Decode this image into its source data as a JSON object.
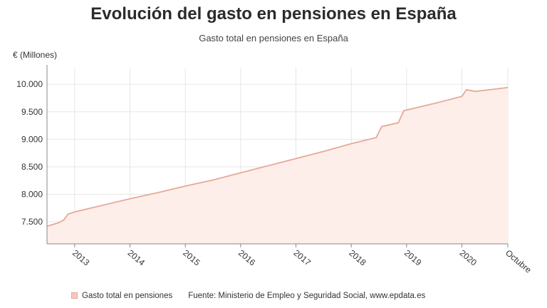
{
  "header": {
    "title": "Evolución del gasto en pensiones en España",
    "subtitle": "Gasto total en pensiones en España"
  },
  "footer": {
    "legend_label": "Gasto total en pensiones",
    "source": "Fuente: Ministerio de Empleo y Seguridad Social, www.epdata.es"
  },
  "colors": {
    "line": "#e8a898",
    "fill": "#fdeee9",
    "grid": "#e6e6e6",
    "axis": "#888888"
  },
  "chart_data": {
    "type": "area",
    "title": "Gasto total en pensiones en España",
    "ylabel": "€ (Millones)",
    "xlabel": "",
    "ylim": [
      7100,
      10300
    ],
    "xlim": [
      2012.5,
      2020.83
    ],
    "yticks": [
      {
        "value": 7500,
        "label": "7.500"
      },
      {
        "value": 8000,
        "label": "8.000"
      },
      {
        "value": 8500,
        "label": "8.500"
      },
      {
        "value": 9000,
        "label": "9.000"
      },
      {
        "value": 9500,
        "label": "9.500"
      },
      {
        "value": 10000,
        "label": "10.000"
      }
    ],
    "xticks": [
      {
        "value": 2013,
        "label": "2013"
      },
      {
        "value": 2014,
        "label": "2014"
      },
      {
        "value": 2015,
        "label": "2015"
      },
      {
        "value": 2016,
        "label": "2016"
      },
      {
        "value": 2017,
        "label": "2017"
      },
      {
        "value": 2018,
        "label": "2018"
      },
      {
        "value": 2019,
        "label": "2019"
      },
      {
        "value": 2020,
        "label": "2020"
      },
      {
        "value": 2020.83,
        "label": "Octubre"
      }
    ],
    "grid": true,
    "series": [
      {
        "name": "Gasto total en pensiones",
        "points": [
          [
            2012.5,
            7420
          ],
          [
            2012.7,
            7480
          ],
          [
            2012.8,
            7530
          ],
          [
            2012.88,
            7640
          ],
          [
            2013.0,
            7680
          ],
          [
            2013.5,
            7800
          ],
          [
            2014.0,
            7920
          ],
          [
            2014.5,
            8030
          ],
          [
            2015.0,
            8150
          ],
          [
            2015.5,
            8260
          ],
          [
            2016.0,
            8390
          ],
          [
            2016.5,
            8520
          ],
          [
            2017.0,
            8650
          ],
          [
            2017.5,
            8780
          ],
          [
            2018.0,
            8920
          ],
          [
            2018.45,
            9030
          ],
          [
            2018.55,
            9230
          ],
          [
            2018.85,
            9300
          ],
          [
            2018.95,
            9520
          ],
          [
            2019.5,
            9650
          ],
          [
            2020.0,
            9780
          ],
          [
            2020.08,
            9900
          ],
          [
            2020.25,
            9870
          ],
          [
            2020.5,
            9900
          ],
          [
            2020.83,
            9940
          ]
        ]
      }
    ]
  }
}
